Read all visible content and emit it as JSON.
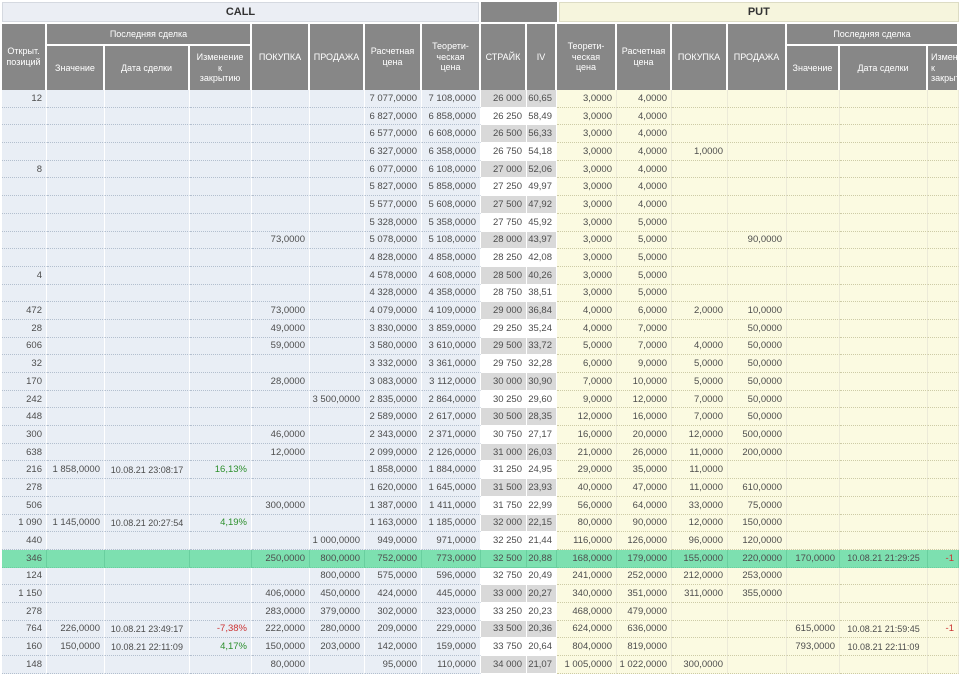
{
  "table": {
    "call_header": "CALL",
    "put_header": "PUT",
    "last_trade_group": "Последняя сделка",
    "columns": {
      "open_positions": "Открыт.\nпозиций",
      "value": "Значение",
      "trade_date": "Дата сделки",
      "change_to_close": "Изменение\nк\nзакрытию",
      "buy": "ПОКУПКА",
      "sell": "ПРОДАЖА",
      "settlement_price": "Расчетная\nцена",
      "theoretical_price": "Теорети-\nческая\nцена",
      "strike": "СТРАЙК",
      "iv": "IV"
    },
    "colors": {
      "header_bg": "#878787",
      "call_area": "#e9eef5",
      "put_area": "#fbfae1",
      "call_band": "#ebeef4",
      "put_band": "#f6f5dd",
      "strike_shaded": "#d9d9d9",
      "highlight_row": "#7de0b0",
      "positive_change": "#2d8f2d",
      "negative_change": "#cc3333"
    },
    "rows": [
      {
        "call": [
          "12",
          "",
          "",
          "",
          "",
          "",
          "7 077,0000",
          "7 108,0000"
        ],
        "strike": "26 000",
        "iv": "60,65",
        "put": [
          "3,0000",
          "4,0000",
          "",
          "",
          "",
          "",
          ""
        ],
        "shaded": true,
        "highlight": false,
        "call_change_color": "",
        "put_change_color": ""
      },
      {
        "call": [
          "",
          "",
          "",
          "",
          "",
          "",
          "6 827,0000",
          "6 858,0000"
        ],
        "strike": "26 250",
        "iv": "58,49",
        "put": [
          "3,0000",
          "4,0000",
          "",
          "",
          "",
          "",
          ""
        ],
        "shaded": false,
        "highlight": false,
        "call_change_color": "",
        "put_change_color": ""
      },
      {
        "call": [
          "",
          "",
          "",
          "",
          "",
          "",
          "6 577,0000",
          "6 608,0000"
        ],
        "strike": "26 500",
        "iv": "56,33",
        "put": [
          "3,0000",
          "4,0000",
          "",
          "",
          "",
          "",
          ""
        ],
        "shaded": true,
        "highlight": false,
        "call_change_color": "",
        "put_change_color": ""
      },
      {
        "call": [
          "",
          "",
          "",
          "",
          "",
          "",
          "6 327,0000",
          "6 358,0000"
        ],
        "strike": "26 750",
        "iv": "54,18",
        "put": [
          "3,0000",
          "4,0000",
          "1,0000",
          "",
          "",
          "",
          ""
        ],
        "shaded": false,
        "highlight": false,
        "call_change_color": "",
        "put_change_color": ""
      },
      {
        "call": [
          "8",
          "",
          "",
          "",
          "",
          "",
          "6 077,0000",
          "6 108,0000"
        ],
        "strike": "27 000",
        "iv": "52,06",
        "put": [
          "3,0000",
          "4,0000",
          "",
          "",
          "",
          "",
          ""
        ],
        "shaded": true,
        "highlight": false,
        "call_change_color": "",
        "put_change_color": ""
      },
      {
        "call": [
          "",
          "",
          "",
          "",
          "",
          "",
          "5 827,0000",
          "5 858,0000"
        ],
        "strike": "27 250",
        "iv": "49,97",
        "put": [
          "3,0000",
          "4,0000",
          "",
          "",
          "",
          "",
          ""
        ],
        "shaded": false,
        "highlight": false,
        "call_change_color": "",
        "put_change_color": ""
      },
      {
        "call": [
          "",
          "",
          "",
          "",
          "",
          "",
          "5 577,0000",
          "5 608,0000"
        ],
        "strike": "27 500",
        "iv": "47,92",
        "put": [
          "3,0000",
          "4,0000",
          "",
          "",
          "",
          "",
          ""
        ],
        "shaded": true,
        "highlight": false,
        "call_change_color": "",
        "put_change_color": ""
      },
      {
        "call": [
          "",
          "",
          "",
          "",
          "",
          "",
          "5 328,0000",
          "5 358,0000"
        ],
        "strike": "27 750",
        "iv": "45,92",
        "put": [
          "3,0000",
          "5,0000",
          "",
          "",
          "",
          "",
          ""
        ],
        "shaded": false,
        "highlight": false,
        "call_change_color": "",
        "put_change_color": ""
      },
      {
        "call": [
          "",
          "",
          "",
          "",
          "73,0000",
          "",
          "5 078,0000",
          "5 108,0000"
        ],
        "strike": "28 000",
        "iv": "43,97",
        "put": [
          "3,0000",
          "5,0000",
          "",
          "90,0000",
          "",
          "",
          ""
        ],
        "shaded": true,
        "highlight": false,
        "call_change_color": "",
        "put_change_color": ""
      },
      {
        "call": [
          "",
          "",
          "",
          "",
          "",
          "",
          "4 828,0000",
          "4 858,0000"
        ],
        "strike": "28 250",
        "iv": "42,08",
        "put": [
          "3,0000",
          "5,0000",
          "",
          "",
          "",
          "",
          ""
        ],
        "shaded": false,
        "highlight": false,
        "call_change_color": "",
        "put_change_color": ""
      },
      {
        "call": [
          "4",
          "",
          "",
          "",
          "",
          "",
          "4 578,0000",
          "4 608,0000"
        ],
        "strike": "28 500",
        "iv": "40,26",
        "put": [
          "3,0000",
          "5,0000",
          "",
          "",
          "",
          "",
          ""
        ],
        "shaded": true,
        "highlight": false,
        "call_change_color": "",
        "put_change_color": ""
      },
      {
        "call": [
          "",
          "",
          "",
          "",
          "",
          "",
          "4 328,0000",
          "4 358,0000"
        ],
        "strike": "28 750",
        "iv": "38,51",
        "put": [
          "3,0000",
          "5,0000",
          "",
          "",
          "",
          "",
          ""
        ],
        "shaded": false,
        "highlight": false,
        "call_change_color": "",
        "put_change_color": ""
      },
      {
        "call": [
          "472",
          "",
          "",
          "",
          "73,0000",
          "",
          "4 079,0000",
          "4 109,0000"
        ],
        "strike": "29 000",
        "iv": "36,84",
        "put": [
          "4,0000",
          "6,0000",
          "2,0000",
          "10,0000",
          "",
          "",
          ""
        ],
        "shaded": true,
        "highlight": false,
        "call_change_color": "",
        "put_change_color": ""
      },
      {
        "call": [
          "28",
          "",
          "",
          "",
          "49,0000",
          "",
          "3 830,0000",
          "3 859,0000"
        ],
        "strike": "29 250",
        "iv": "35,24",
        "put": [
          "4,0000",
          "7,0000",
          "",
          "50,0000",
          "",
          "",
          ""
        ],
        "shaded": false,
        "highlight": false,
        "call_change_color": "",
        "put_change_color": ""
      },
      {
        "call": [
          "606",
          "",
          "",
          "",
          "59,0000",
          "",
          "3 580,0000",
          "3 610,0000"
        ],
        "strike": "29 500",
        "iv": "33,72",
        "put": [
          "5,0000",
          "7,0000",
          "4,0000",
          "50,0000",
          "",
          "",
          ""
        ],
        "shaded": true,
        "highlight": false,
        "call_change_color": "",
        "put_change_color": ""
      },
      {
        "call": [
          "32",
          "",
          "",
          "",
          "",
          "",
          "3 332,0000",
          "3 361,0000"
        ],
        "strike": "29 750",
        "iv": "32,28",
        "put": [
          "6,0000",
          "9,0000",
          "5,0000",
          "50,0000",
          "",
          "",
          ""
        ],
        "shaded": false,
        "highlight": false,
        "call_change_color": "",
        "put_change_color": ""
      },
      {
        "call": [
          "170",
          "",
          "",
          "",
          "28,0000",
          "",
          "3 083,0000",
          "3 112,0000"
        ],
        "strike": "30 000",
        "iv": "30,90",
        "put": [
          "7,0000",
          "10,0000",
          "5,0000",
          "50,0000",
          "",
          "",
          ""
        ],
        "shaded": true,
        "highlight": false,
        "call_change_color": "",
        "put_change_color": ""
      },
      {
        "call": [
          "242",
          "",
          "",
          "",
          "",
          "3 500,0000",
          "2 835,0000",
          "2 864,0000"
        ],
        "strike": "30 250",
        "iv": "29,60",
        "put": [
          "9,0000",
          "12,0000",
          "7,0000",
          "50,0000",
          "",
          "",
          ""
        ],
        "shaded": false,
        "highlight": false,
        "call_change_color": "",
        "put_change_color": ""
      },
      {
        "call": [
          "448",
          "",
          "",
          "",
          "",
          "",
          "2 589,0000",
          "2 617,0000"
        ],
        "strike": "30 500",
        "iv": "28,35",
        "put": [
          "12,0000",
          "16,0000",
          "7,0000",
          "50,0000",
          "",
          "",
          ""
        ],
        "shaded": true,
        "highlight": false,
        "call_change_color": "",
        "put_change_color": ""
      },
      {
        "call": [
          "300",
          "",
          "",
          "",
          "46,0000",
          "",
          "2 343,0000",
          "2 371,0000"
        ],
        "strike": "30 750",
        "iv": "27,17",
        "put": [
          "16,0000",
          "20,0000",
          "12,0000",
          "500,0000",
          "",
          "",
          ""
        ],
        "shaded": false,
        "highlight": false,
        "call_change_color": "",
        "put_change_color": ""
      },
      {
        "call": [
          "638",
          "",
          "",
          "",
          "12,0000",
          "",
          "2 099,0000",
          "2 126,0000"
        ],
        "strike": "31 000",
        "iv": "26,03",
        "put": [
          "21,0000",
          "26,0000",
          "11,0000",
          "200,0000",
          "",
          "",
          ""
        ],
        "shaded": true,
        "highlight": false,
        "call_change_color": "",
        "put_change_color": ""
      },
      {
        "call": [
          "216",
          "1 858,0000",
          "10.08.21 23:08:17",
          "16,13%",
          "",
          "",
          "1 858,0000",
          "1 884,0000"
        ],
        "strike": "31 250",
        "iv": "24,95",
        "put": [
          "29,0000",
          "35,0000",
          "11,0000",
          "",
          "",
          "",
          ""
        ],
        "shaded": false,
        "highlight": false,
        "call_change_color": "green",
        "put_change_color": ""
      },
      {
        "call": [
          "278",
          "",
          "",
          "",
          "",
          "",
          "1 620,0000",
          "1 645,0000"
        ],
        "strike": "31 500",
        "iv": "23,93",
        "put": [
          "40,0000",
          "47,0000",
          "11,0000",
          "610,0000",
          "",
          "",
          ""
        ],
        "shaded": true,
        "highlight": false,
        "call_change_color": "",
        "put_change_color": ""
      },
      {
        "call": [
          "506",
          "",
          "",
          "",
          "300,0000",
          "",
          "1 387,0000",
          "1 411,0000"
        ],
        "strike": "31 750",
        "iv": "22,99",
        "put": [
          "56,0000",
          "64,0000",
          "33,0000",
          "75,0000",
          "",
          "",
          ""
        ],
        "shaded": false,
        "highlight": false,
        "call_change_color": "",
        "put_change_color": ""
      },
      {
        "call": [
          "1 090",
          "1 145,0000",
          "10.08.21 20:27:54",
          "4,19%",
          "",
          "",
          "1 163,0000",
          "1 185,0000"
        ],
        "strike": "32 000",
        "iv": "22,15",
        "put": [
          "80,0000",
          "90,0000",
          "12,0000",
          "150,0000",
          "",
          "",
          ""
        ],
        "shaded": true,
        "highlight": false,
        "call_change_color": "green",
        "put_change_color": ""
      },
      {
        "call": [
          "440",
          "",
          "",
          "",
          "",
          "1 000,0000",
          "949,0000",
          "971,0000"
        ],
        "strike": "32 250",
        "iv": "21,44",
        "put": [
          "116,0000",
          "126,0000",
          "96,0000",
          "120,0000",
          "",
          "",
          ""
        ],
        "shaded": false,
        "highlight": false,
        "call_change_color": "",
        "put_change_color": ""
      },
      {
        "call": [
          "346",
          "",
          "",
          "",
          "250,0000",
          "800,0000",
          "752,0000",
          "773,0000"
        ],
        "strike": "32 500",
        "iv": "20,88",
        "put": [
          "168,0000",
          "179,0000",
          "155,0000",
          "220,0000",
          "170,0000",
          "10.08.21 21:29:25",
          "-1"
        ],
        "shaded": true,
        "highlight": true,
        "call_change_color": "",
        "put_change_color": "red"
      },
      {
        "call": [
          "124",
          "",
          "",
          "",
          "",
          "800,0000",
          "575,0000",
          "596,0000"
        ],
        "strike": "32 750",
        "iv": "20,49",
        "put": [
          "241,0000",
          "252,0000",
          "212,0000",
          "253,0000",
          "",
          "",
          ""
        ],
        "shaded": false,
        "highlight": false,
        "call_change_color": "",
        "put_change_color": ""
      },
      {
        "call": [
          "1 150",
          "",
          "",
          "",
          "406,0000",
          "450,0000",
          "424,0000",
          "445,0000"
        ],
        "strike": "33 000",
        "iv": "20,27",
        "put": [
          "340,0000",
          "351,0000",
          "311,0000",
          "355,0000",
          "",
          "",
          ""
        ],
        "shaded": true,
        "highlight": false,
        "call_change_color": "",
        "put_change_color": ""
      },
      {
        "call": [
          "278",
          "",
          "",
          "",
          "283,0000",
          "379,0000",
          "302,0000",
          "323,0000"
        ],
        "strike": "33 250",
        "iv": "20,23",
        "put": [
          "468,0000",
          "479,0000",
          "",
          "",
          "",
          "",
          ""
        ],
        "shaded": false,
        "highlight": false,
        "call_change_color": "",
        "put_change_color": ""
      },
      {
        "call": [
          "764",
          "226,0000",
          "10.08.21 23:49:17",
          "-7,38%",
          "222,0000",
          "280,0000",
          "209,0000",
          "229,0000"
        ],
        "strike": "33 500",
        "iv": "20,36",
        "put": [
          "624,0000",
          "636,0000",
          "",
          "",
          "615,0000",
          "10.08.21 21:59:45",
          "-1"
        ],
        "shaded": true,
        "highlight": false,
        "call_change_color": "red",
        "put_change_color": "red"
      },
      {
        "call": [
          "160",
          "150,0000",
          "10.08.21 22:11:09",
          "4,17%",
          "150,0000",
          "203,0000",
          "142,0000",
          "159,0000"
        ],
        "strike": "33 750",
        "iv": "20,64",
        "put": [
          "804,0000",
          "819,0000",
          "",
          "",
          "793,0000",
          "10.08.21 22:11:09",
          ""
        ],
        "shaded": false,
        "highlight": false,
        "call_change_color": "green",
        "put_change_color": ""
      },
      {
        "call": [
          "148",
          "",
          "",
          "",
          "80,0000",
          "",
          "95,0000",
          "110,0000"
        ],
        "strike": "34 000",
        "iv": "21,07",
        "put": [
          "1 005,0000",
          "1 022,0000",
          "300,0000",
          "",
          "",
          "",
          ""
        ],
        "shaded": true,
        "highlight": false,
        "call_change_color": "",
        "put_change_color": ""
      }
    ]
  }
}
